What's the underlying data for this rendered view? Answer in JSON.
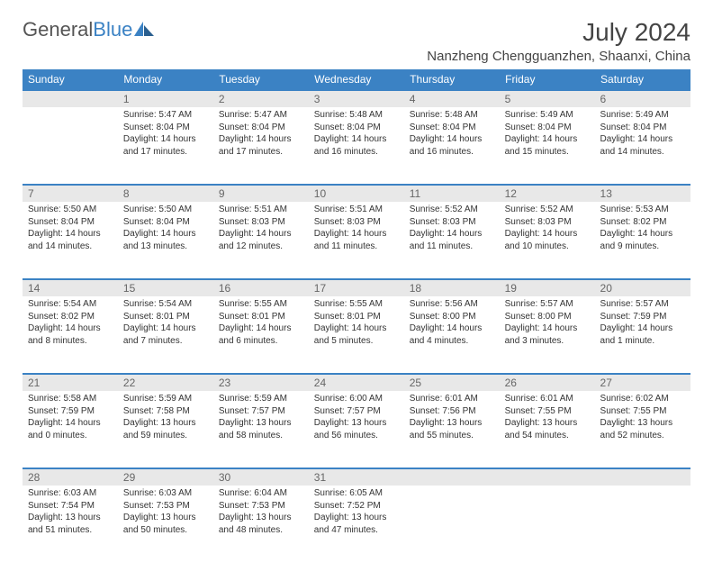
{
  "logo": {
    "text_general": "General",
    "text_blue": "Blue"
  },
  "title": "July 2024",
  "location": "Nanzheng Chengguanzhen, Shaanxi, China",
  "columns": [
    "Sunday",
    "Monday",
    "Tuesday",
    "Wednesday",
    "Thursday",
    "Friday",
    "Saturday"
  ],
  "colors": {
    "header_bg": "#3b82c4",
    "daynum_bg": "#e8e8e8",
    "text": "#333333",
    "border": "#3b82c4"
  },
  "weeks": [
    [
      {
        "day": "",
        "lines": []
      },
      {
        "day": "1",
        "lines": [
          "Sunrise: 5:47 AM",
          "Sunset: 8:04 PM",
          "Daylight: 14 hours and 17 minutes."
        ]
      },
      {
        "day": "2",
        "lines": [
          "Sunrise: 5:47 AM",
          "Sunset: 8:04 PM",
          "Daylight: 14 hours and 17 minutes."
        ]
      },
      {
        "day": "3",
        "lines": [
          "Sunrise: 5:48 AM",
          "Sunset: 8:04 PM",
          "Daylight: 14 hours and 16 minutes."
        ]
      },
      {
        "day": "4",
        "lines": [
          "Sunrise: 5:48 AM",
          "Sunset: 8:04 PM",
          "Daylight: 14 hours and 16 minutes."
        ]
      },
      {
        "day": "5",
        "lines": [
          "Sunrise: 5:49 AM",
          "Sunset: 8:04 PM",
          "Daylight: 14 hours and 15 minutes."
        ]
      },
      {
        "day": "6",
        "lines": [
          "Sunrise: 5:49 AM",
          "Sunset: 8:04 PM",
          "Daylight: 14 hours and 14 minutes."
        ]
      }
    ],
    [
      {
        "day": "7",
        "lines": [
          "Sunrise: 5:50 AM",
          "Sunset: 8:04 PM",
          "Daylight: 14 hours and 14 minutes."
        ]
      },
      {
        "day": "8",
        "lines": [
          "Sunrise: 5:50 AM",
          "Sunset: 8:04 PM",
          "Daylight: 14 hours and 13 minutes."
        ]
      },
      {
        "day": "9",
        "lines": [
          "Sunrise: 5:51 AM",
          "Sunset: 8:03 PM",
          "Daylight: 14 hours and 12 minutes."
        ]
      },
      {
        "day": "10",
        "lines": [
          "Sunrise: 5:51 AM",
          "Sunset: 8:03 PM",
          "Daylight: 14 hours and 11 minutes."
        ]
      },
      {
        "day": "11",
        "lines": [
          "Sunrise: 5:52 AM",
          "Sunset: 8:03 PM",
          "Daylight: 14 hours and 11 minutes."
        ]
      },
      {
        "day": "12",
        "lines": [
          "Sunrise: 5:52 AM",
          "Sunset: 8:03 PM",
          "Daylight: 14 hours and 10 minutes."
        ]
      },
      {
        "day": "13",
        "lines": [
          "Sunrise: 5:53 AM",
          "Sunset: 8:02 PM",
          "Daylight: 14 hours and 9 minutes."
        ]
      }
    ],
    [
      {
        "day": "14",
        "lines": [
          "Sunrise: 5:54 AM",
          "Sunset: 8:02 PM",
          "Daylight: 14 hours and 8 minutes."
        ]
      },
      {
        "day": "15",
        "lines": [
          "Sunrise: 5:54 AM",
          "Sunset: 8:01 PM",
          "Daylight: 14 hours and 7 minutes."
        ]
      },
      {
        "day": "16",
        "lines": [
          "Sunrise: 5:55 AM",
          "Sunset: 8:01 PM",
          "Daylight: 14 hours and 6 minutes."
        ]
      },
      {
        "day": "17",
        "lines": [
          "Sunrise: 5:55 AM",
          "Sunset: 8:01 PM",
          "Daylight: 14 hours and 5 minutes."
        ]
      },
      {
        "day": "18",
        "lines": [
          "Sunrise: 5:56 AM",
          "Sunset: 8:00 PM",
          "Daylight: 14 hours and 4 minutes."
        ]
      },
      {
        "day": "19",
        "lines": [
          "Sunrise: 5:57 AM",
          "Sunset: 8:00 PM",
          "Daylight: 14 hours and 3 minutes."
        ]
      },
      {
        "day": "20",
        "lines": [
          "Sunrise: 5:57 AM",
          "Sunset: 7:59 PM",
          "Daylight: 14 hours and 1 minute."
        ]
      }
    ],
    [
      {
        "day": "21",
        "lines": [
          "Sunrise: 5:58 AM",
          "Sunset: 7:59 PM",
          "Daylight: 14 hours and 0 minutes."
        ]
      },
      {
        "day": "22",
        "lines": [
          "Sunrise: 5:59 AM",
          "Sunset: 7:58 PM",
          "Daylight: 13 hours and 59 minutes."
        ]
      },
      {
        "day": "23",
        "lines": [
          "Sunrise: 5:59 AM",
          "Sunset: 7:57 PM",
          "Daylight: 13 hours and 58 minutes."
        ]
      },
      {
        "day": "24",
        "lines": [
          "Sunrise: 6:00 AM",
          "Sunset: 7:57 PM",
          "Daylight: 13 hours and 56 minutes."
        ]
      },
      {
        "day": "25",
        "lines": [
          "Sunrise: 6:01 AM",
          "Sunset: 7:56 PM",
          "Daylight: 13 hours and 55 minutes."
        ]
      },
      {
        "day": "26",
        "lines": [
          "Sunrise: 6:01 AM",
          "Sunset: 7:55 PM",
          "Daylight: 13 hours and 54 minutes."
        ]
      },
      {
        "day": "27",
        "lines": [
          "Sunrise: 6:02 AM",
          "Sunset: 7:55 PM",
          "Daylight: 13 hours and 52 minutes."
        ]
      }
    ],
    [
      {
        "day": "28",
        "lines": [
          "Sunrise: 6:03 AM",
          "Sunset: 7:54 PM",
          "Daylight: 13 hours and 51 minutes."
        ]
      },
      {
        "day": "29",
        "lines": [
          "Sunrise: 6:03 AM",
          "Sunset: 7:53 PM",
          "Daylight: 13 hours and 50 minutes."
        ]
      },
      {
        "day": "30",
        "lines": [
          "Sunrise: 6:04 AM",
          "Sunset: 7:53 PM",
          "Daylight: 13 hours and 48 minutes."
        ]
      },
      {
        "day": "31",
        "lines": [
          "Sunrise: 6:05 AM",
          "Sunset: 7:52 PM",
          "Daylight: 13 hours and 47 minutes."
        ]
      },
      {
        "day": "",
        "lines": []
      },
      {
        "day": "",
        "lines": []
      },
      {
        "day": "",
        "lines": []
      }
    ]
  ]
}
